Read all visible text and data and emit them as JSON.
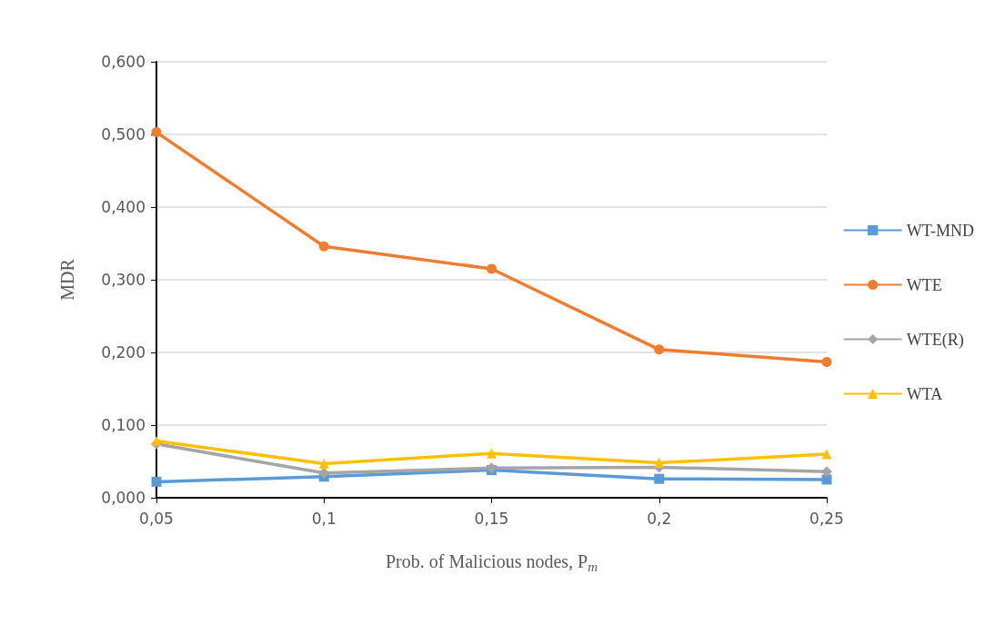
{
  "chart_data": {
    "type": "line",
    "xlabel": "Prob. of Malicious nodes, P$_{m}$",
    "ylabel": "MDR",
    "categories": [
      "0,05",
      "0,1",
      "0,15",
      "0,2",
      "0,25"
    ],
    "series": [
      {
        "name": "WT-MND",
        "color": "#5b9bd5",
        "marker": "square",
        "values": [
          0.022,
          0.029,
          0.038,
          0.026,
          0.025
        ]
      },
      {
        "name": "WTE",
        "color": "#ed7d31",
        "marker": "circle",
        "values": [
          0.503,
          0.346,
          0.315,
          0.204,
          0.187
        ]
      },
      {
        "name": "WTE(R)",
        "color": "#a5a5a5",
        "marker": "diamond",
        "values": [
          0.074,
          0.034,
          0.041,
          0.042,
          0.036
        ]
      },
      {
        "name": "WTA",
        "color": "#ffc000",
        "marker": "triangle",
        "values": [
          0.078,
          0.047,
          0.061,
          0.048,
          0.06
        ]
      }
    ],
    "ylim": [
      0,
      0.6
    ],
    "yticks": [
      {
        "value": 0,
        "label": "0,000"
      },
      {
        "value": 0.1,
        "label": "0,100"
      },
      {
        "value": 0.2,
        "label": "0,200"
      },
      {
        "value": 0.3,
        "label": "0,300"
      },
      {
        "value": 0.4,
        "label": "0,400"
      },
      {
        "value": 0.5,
        "label": "0,500"
      },
      {
        "value": 0.6,
        "label": "0,600"
      }
    ],
    "grid": "y",
    "legend": "right",
    "line_style": "solid"
  }
}
